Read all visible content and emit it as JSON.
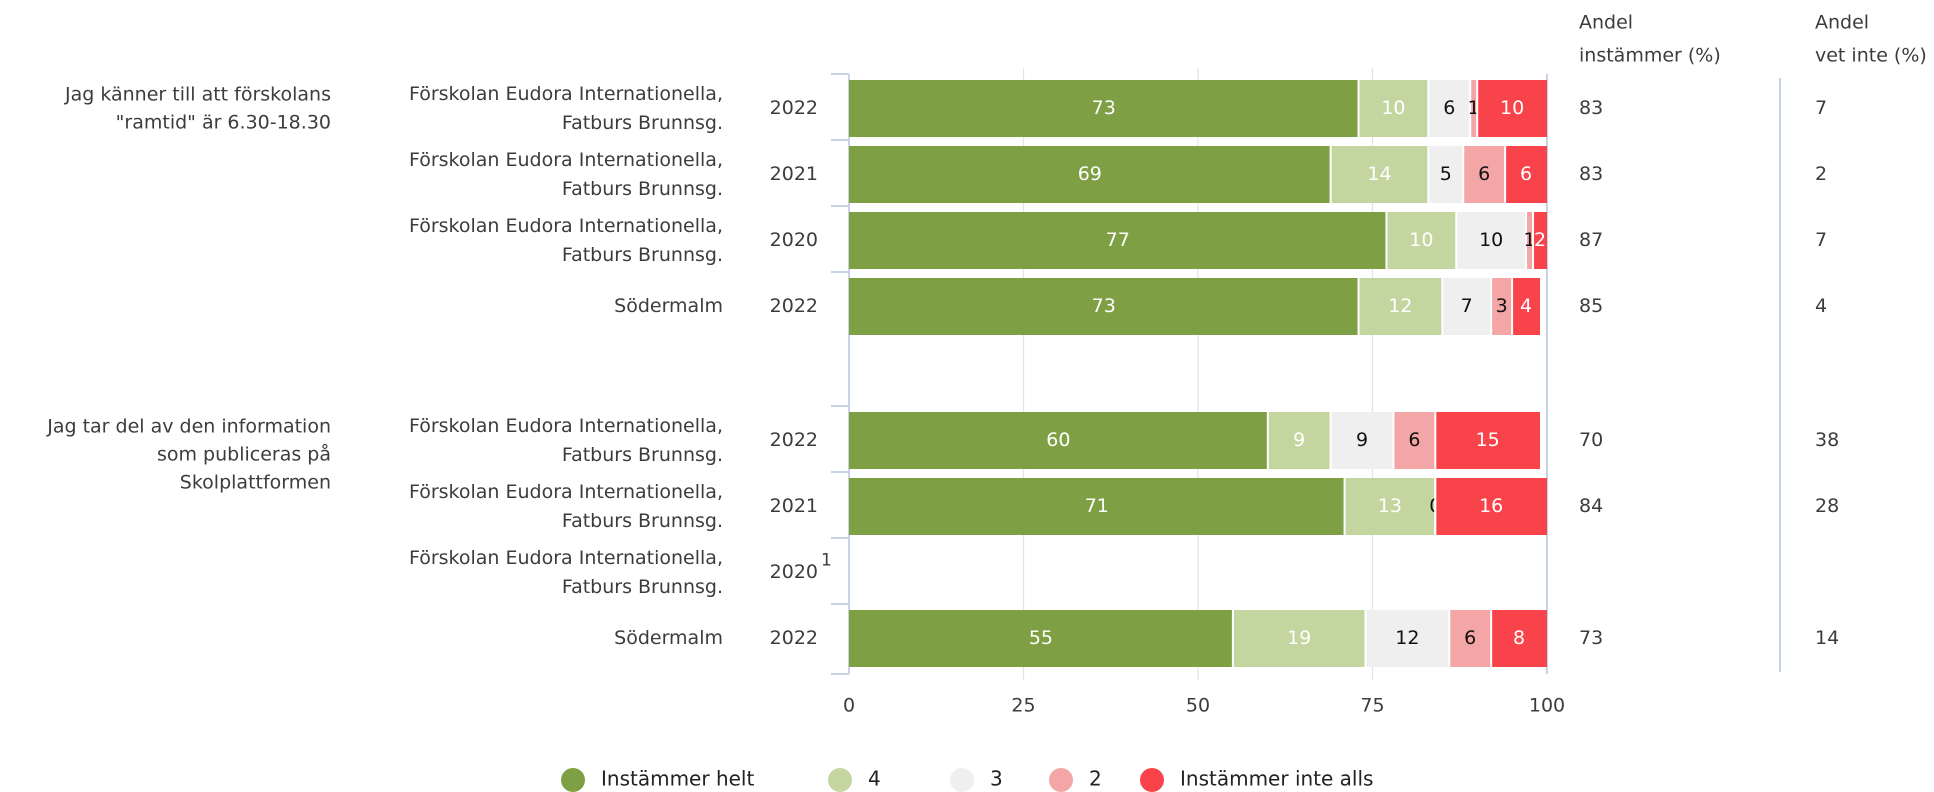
{
  "chart_data": {
    "type": "bar",
    "stacked": true,
    "orientation": "horizontal",
    "xlim": [
      0,
      100
    ],
    "x_ticks": [
      "0",
      "25",
      "50",
      "75",
      "100"
    ],
    "grid": true,
    "legend_position": "bottom",
    "col_headers": {
      "instammer": [
        "Andel",
        "instämmer (%)"
      ],
      "vetinte": [
        "Andel",
        "vet inte (%)"
      ]
    },
    "series": [
      {
        "name": "Instämmer helt",
        "color": "#7f9f45"
      },
      {
        "name": "4",
        "color": "#c4d6a0"
      },
      {
        "name": "3",
        "color": "#efefef"
      },
      {
        "name": "2",
        "color": "#f4a5a5"
      },
      {
        "name": "Instämmer inte alls",
        "color": "#f9434a"
      }
    ],
    "groups": [
      {
        "question": [
          "Jag känner till att förskolans",
          "\"ramtid\" är 6.30-18.30"
        ],
        "rows": [
          {
            "unit": [
              "Förskolan Eudora Internationella,",
              "Fatburs Brunnsg."
            ],
            "year": "2022",
            "footnote": "",
            "values": [
              73,
              10,
              6,
              1,
              10
            ],
            "instammer": "83",
            "vetinte": "7"
          },
          {
            "unit": [
              "Förskolan Eudora Internationella,",
              "Fatburs Brunnsg."
            ],
            "year": "2021",
            "footnote": "",
            "values": [
              69,
              14,
              5,
              6,
              6
            ],
            "instammer": "83",
            "vetinte": "2"
          },
          {
            "unit": [
              "Förskolan Eudora Internationella,",
              "Fatburs Brunnsg."
            ],
            "year": "2020",
            "footnote": "",
            "values": [
              77,
              10,
              10,
              1,
              2
            ],
            "instammer": "87",
            "vetinte": "7"
          },
          {
            "unit": [
              "Södermalm"
            ],
            "year": "2022",
            "footnote": "",
            "values": [
              73,
              12,
              7,
              3,
              4
            ],
            "instammer": "85",
            "vetinte": "4"
          }
        ]
      },
      {
        "question": [
          "Jag tar del av den information",
          "som publiceras på",
          "Skolplattformen"
        ],
        "rows": [
          {
            "unit": [
              "Förskolan Eudora Internationella,",
              "Fatburs Brunnsg."
            ],
            "year": "2022",
            "footnote": "",
            "values": [
              60,
              9,
              9,
              6,
              15
            ],
            "instammer": "70",
            "vetinte": "38"
          },
          {
            "unit": [
              "Förskolan Eudora Internationella,",
              "Fatburs Brunnsg."
            ],
            "year": "2021",
            "footnote": "",
            "values": [
              71,
              13,
              0,
              0,
              16
            ],
            "instammer": "84",
            "vetinte": "28"
          },
          {
            "unit": [
              "Förskolan Eudora Internationella,",
              "Fatburs Brunnsg."
            ],
            "year": "2020",
            "footnote": "1",
            "values": null,
            "instammer": "",
            "vetinte": ""
          },
          {
            "unit": [
              "Södermalm"
            ],
            "year": "2022",
            "footnote": "",
            "values": [
              55,
              19,
              12,
              6,
              8
            ],
            "instammer": "73",
            "vetinte": "14"
          }
        ]
      }
    ]
  }
}
